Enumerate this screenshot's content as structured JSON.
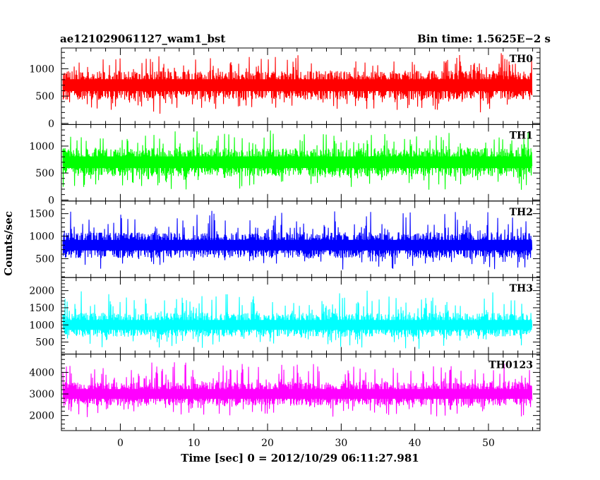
{
  "chart_data": {
    "type": "line",
    "title_left": "ae121029061127_wam1_bst",
    "title_right": "Bin time: 1.5625E−2 s",
    "xlabel": "Time [sec] 0 = 2012/10/29 06:11:27.981",
    "ylabel": "Counts/sec",
    "xlim": [
      -8,
      57
    ],
    "x_ticks": [
      0,
      10,
      20,
      30,
      40,
      50
    ],
    "x_tick_labels": [
      "0",
      "10",
      "20",
      "30",
      "40",
      "50"
    ],
    "x_data_range": [
      -7.8,
      55.9
    ],
    "panels": [
      {
        "name": "TH0",
        "color": "#ff0000",
        "ylim": [
          -20,
          1380
        ],
        "ticks": [
          0,
          500,
          1000
        ],
        "tick_labels": [
          "0",
          "500",
          "1000"
        ],
        "base": 700,
        "low": 40,
        "high": 1370,
        "spread": 240,
        "spike_up": 350
      },
      {
        "name": "TH1",
        "color": "#00ff00",
        "ylim": [
          -20,
          1400
        ],
        "ticks": [
          0,
          500,
          1000
        ],
        "tick_labels": [
          "0",
          "500",
          "1000"
        ],
        "base": 700,
        "low": 30,
        "high": 1390,
        "spread": 240,
        "spike_up": 350
      },
      {
        "name": "TH2",
        "color": "#0000ff",
        "ylim": [
          80,
          1780
        ],
        "ticks": [
          500,
          1000,
          1500
        ],
        "tick_labels": [
          "500",
          "1000",
          "1500"
        ],
        "base": 800,
        "low": 100,
        "high": 1760,
        "spread": 260,
        "spike_up": 500
      },
      {
        "name": "TH3",
        "color": "#00ffff",
        "ylim": [
          150,
          2380
        ],
        "ticks": [
          500,
          1000,
          1500,
          2000
        ],
        "tick_labels": [
          "500",
          "1000",
          "1500",
          "2000"
        ],
        "base": 1000,
        "low": 300,
        "high": 2380,
        "spread": 320,
        "spike_up": 700
      },
      {
        "name": "TH0123",
        "color": "#ff00ff",
        "ylim": [
          1300,
          4850
        ],
        "ticks": [
          2000,
          3000,
          4000
        ],
        "tick_labels": [
          "2000",
          "3000",
          "4000"
        ],
        "base": 3000,
        "low": 1350,
        "high": 4850,
        "spread": 500,
        "spike_up": 1000
      }
    ]
  }
}
